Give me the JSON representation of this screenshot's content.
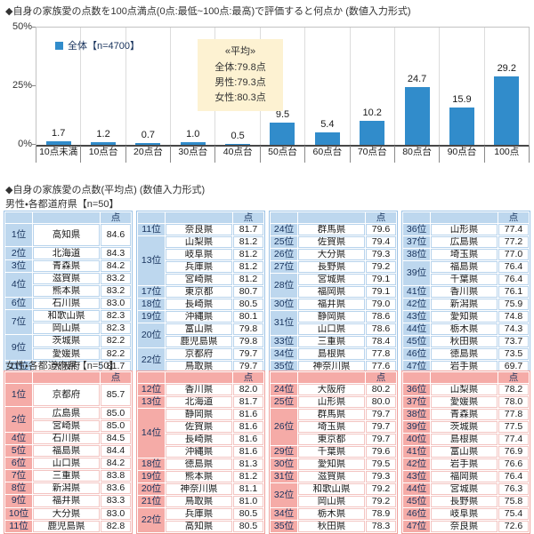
{
  "page": {
    "title": "◆自身の家族愛の点数を100点満点(0点:最低~100点:最高)で評価すると何点か (数値入力形式)",
    "subtitle": "◆自身の家族愛の点数(平均点) (数値入力形式)"
  },
  "chart_data": {
    "type": "bar",
    "title": "自身の家族愛の点数を100点満点で評価すると何点か",
    "categories": [
      "10点未満",
      "10点台",
      "20点台",
      "30点台",
      "40点台",
      "50点台",
      "60点台",
      "70点台",
      "80点台",
      "90点台",
      "100点"
    ],
    "values": [
      1.7,
      1.2,
      0.7,
      1.0,
      0.5,
      9.5,
      5.4,
      10.2,
      24.7,
      15.9,
      29.2
    ],
    "xlabel": "",
    "ylabel": "%",
    "ylim": [
      0,
      50
    ],
    "yticks": [
      "50%",
      "25%",
      "0%"
    ],
    "grid": "vertical-only",
    "legend_position": "top-left-inside",
    "legend": "全体【n=4700】",
    "bar_color": "#318ccb",
    "avg_box": {
      "bg_color": "#fdf2d2",
      "heading": "«平均»",
      "lines": [
        "全体:79.8点",
        "男性:79.3点",
        "女性:80.3点"
      ]
    }
  },
  "male_table": {
    "label": "男性・各都道府県【n=50】",
    "point_header": "点",
    "theme_color": "#bdd7ee",
    "columns": [
      [
        {
          "rank": "1位",
          "name": "高知県",
          "score": "84.6",
          "tall": true
        },
        {
          "rank": "2位",
          "name": "北海道",
          "score": "84.3"
        },
        {
          "rank": "3位",
          "name": "青森県",
          "score": "84.2"
        },
        {
          "rank": "4位",
          "rank_span": 2,
          "name": "滋賀県",
          "score": "83.2"
        },
        {
          "name": "熊本県",
          "score": "83.2"
        },
        {
          "rank": "6位",
          "name": "石川県",
          "score": "83.0"
        },
        {
          "rank": "7位",
          "rank_span": 2,
          "name": "和歌山県",
          "score": "82.3"
        },
        {
          "name": "岡山県",
          "score": "82.3"
        },
        {
          "rank": "9位",
          "rank_span": 2,
          "name": "茨城県",
          "score": "82.2"
        },
        {
          "name": "愛媛県",
          "score": "82.2"
        },
        {
          "rank": "11位",
          "name": "大阪府",
          "score": "81.7"
        }
      ],
      [
        {
          "rank": "11位",
          "name": "奈良県",
          "score": "81.7"
        },
        {
          "rank": "13位",
          "rank_span": 4,
          "name": "山梨県",
          "score": "81.2"
        },
        {
          "name": "岐阜県",
          "score": "81.2"
        },
        {
          "name": "兵庫県",
          "score": "81.2"
        },
        {
          "name": "宮崎県",
          "score": "81.2"
        },
        {
          "rank": "17位",
          "name": "東京都",
          "score": "80.7"
        },
        {
          "rank": "18位",
          "name": "長崎県",
          "score": "80.5"
        },
        {
          "rank": "19位",
          "name": "沖縄県",
          "score": "80.1"
        },
        {
          "rank": "20位",
          "rank_span": 2,
          "name": "富山県",
          "score": "79.8"
        },
        {
          "name": "鹿児島県",
          "score": "79.8"
        },
        {
          "rank": "22位",
          "rank_span": 2,
          "name": "京都府",
          "score": "79.7"
        },
        {
          "name": "鳥取県",
          "score": "79.7"
        }
      ],
      [
        {
          "rank": "24位",
          "name": "群馬県",
          "score": "79.6"
        },
        {
          "rank": "25位",
          "name": "佐賀県",
          "score": "79.4"
        },
        {
          "rank": "26位",
          "name": "大分県",
          "score": "79.3"
        },
        {
          "rank": "27位",
          "name": "長野県",
          "score": "79.2"
        },
        {
          "rank": "28位",
          "rank_span": 2,
          "name": "宮城県",
          "score": "79.1"
        },
        {
          "name": "福岡県",
          "score": "79.1"
        },
        {
          "rank": "30位",
          "name": "福井県",
          "score": "79.0"
        },
        {
          "rank": "31位",
          "rank_span": 2,
          "name": "静岡県",
          "score": "78.6"
        },
        {
          "name": "山口県",
          "score": "78.6"
        },
        {
          "rank": "33位",
          "name": "三重県",
          "score": "78.4"
        },
        {
          "rank": "34位",
          "name": "島根県",
          "score": "77.8"
        },
        {
          "rank": "35位",
          "name": "神奈川県",
          "score": "77.6"
        }
      ],
      [
        {
          "rank": "36位",
          "name": "山形県",
          "score": "77.4"
        },
        {
          "rank": "37位",
          "name": "広島県",
          "score": "77.2"
        },
        {
          "rank": "38位",
          "name": "埼玉県",
          "score": "77.0"
        },
        {
          "rank": "39位",
          "rank_span": 2,
          "name": "福島県",
          "score": "76.4"
        },
        {
          "name": "千葉県",
          "score": "76.4"
        },
        {
          "rank": "41位",
          "name": "香川県",
          "score": "76.1"
        },
        {
          "rank": "42位",
          "name": "新潟県",
          "score": "75.9"
        },
        {
          "rank": "43位",
          "name": "愛知県",
          "score": "74.8"
        },
        {
          "rank": "44位",
          "name": "栃木県",
          "score": "74.3"
        },
        {
          "rank": "45位",
          "name": "秋田県",
          "score": "73.7"
        },
        {
          "rank": "46位",
          "name": "徳島県",
          "score": "73.5"
        },
        {
          "rank": "47位",
          "name": "岩手県",
          "score": "69.7"
        }
      ]
    ]
  },
  "female_table": {
    "label": "女性・各都道府県【n=50】",
    "point_header": "点",
    "theme_color": "#f5aba7",
    "columns": [
      [
        {
          "rank": "1位",
          "name": "京都府",
          "score": "85.7",
          "tall": true
        },
        {
          "rank": "2位",
          "rank_span": 2,
          "name": "広島県",
          "score": "85.0"
        },
        {
          "name": "宮崎県",
          "score": "85.0"
        },
        {
          "rank": "4位",
          "name": "石川県",
          "score": "84.5"
        },
        {
          "rank": "5位",
          "name": "福島県",
          "score": "84.4"
        },
        {
          "rank": "6位",
          "name": "山口県",
          "score": "84.2"
        },
        {
          "rank": "7位",
          "name": "三重県",
          "score": "83.8"
        },
        {
          "rank": "8位",
          "name": "新潟県",
          "score": "83.6"
        },
        {
          "rank": "9位",
          "name": "福井県",
          "score": "83.3"
        },
        {
          "rank": "10位",
          "name": "大分県",
          "score": "83.0"
        },
        {
          "rank": "11位",
          "name": "鹿児島県",
          "score": "82.8"
        }
      ],
      [
        {
          "rank": "12位",
          "name": "香川県",
          "score": "82.0"
        },
        {
          "rank": "13位",
          "name": "北海道",
          "score": "81.7"
        },
        {
          "rank": "14位",
          "rank_span": 4,
          "name": "静岡県",
          "score": "81.6"
        },
        {
          "name": "佐賀県",
          "score": "81.6"
        },
        {
          "name": "長崎県",
          "score": "81.6"
        },
        {
          "name": "沖縄県",
          "score": "81.6"
        },
        {
          "rank": "18位",
          "name": "徳島県",
          "score": "81.3"
        },
        {
          "rank": "19位",
          "name": "熊本県",
          "score": "81.2"
        },
        {
          "rank": "20位",
          "name": "神奈川県",
          "score": "81.1"
        },
        {
          "rank": "21位",
          "name": "鳥取県",
          "score": "81.0"
        },
        {
          "rank": "22位",
          "rank_span": 2,
          "name": "兵庫県",
          "score": "80.5"
        },
        {
          "name": "高知県",
          "score": "80.5"
        }
      ],
      [
        {
          "rank": "24位",
          "name": "大阪府",
          "score": "80.2"
        },
        {
          "rank": "25位",
          "name": "山形県",
          "score": "80.0"
        },
        {
          "rank": "26位",
          "rank_span": 3,
          "name": "群馬県",
          "score": "79.7"
        },
        {
          "name": "埼玉県",
          "score": "79.7"
        },
        {
          "name": "東京都",
          "score": "79.7"
        },
        {
          "rank": "29位",
          "name": "千葉県",
          "score": "79.6"
        },
        {
          "rank": "30位",
          "name": "愛知県",
          "score": "79.5"
        },
        {
          "rank": "31位",
          "name": "滋賀県",
          "score": "79.3"
        },
        {
          "rank": "32位",
          "rank_span": 2,
          "name": "和歌山県",
          "score": "79.2"
        },
        {
          "name": "岡山県",
          "score": "79.2"
        },
        {
          "rank": "34位",
          "name": "栃木県",
          "score": "78.9"
        },
        {
          "rank": "35位",
          "name": "秋田県",
          "score": "78.3"
        }
      ],
      [
        {
          "rank": "36位",
          "name": "山梨県",
          "score": "78.2"
        },
        {
          "rank": "37位",
          "name": "愛媛県",
          "score": "78.0"
        },
        {
          "rank": "38位",
          "name": "青森県",
          "score": "77.8"
        },
        {
          "rank": "39位",
          "name": "茨城県",
          "score": "77.5"
        },
        {
          "rank": "40位",
          "name": "島根県",
          "score": "77.4"
        },
        {
          "rank": "41位",
          "name": "富山県",
          "score": "76.9"
        },
        {
          "rank": "42位",
          "name": "岩手県",
          "score": "76.6"
        },
        {
          "rank": "43位",
          "name": "福岡県",
          "score": "76.4"
        },
        {
          "rank": "44位",
          "name": "宮城県",
          "score": "76.3"
        },
        {
          "rank": "45位",
          "name": "長野県",
          "score": "75.8"
        },
        {
          "rank": "46位",
          "name": "岐阜県",
          "score": "75.4"
        },
        {
          "rank": "47位",
          "name": "奈良県",
          "score": "72.6"
        }
      ]
    ]
  }
}
